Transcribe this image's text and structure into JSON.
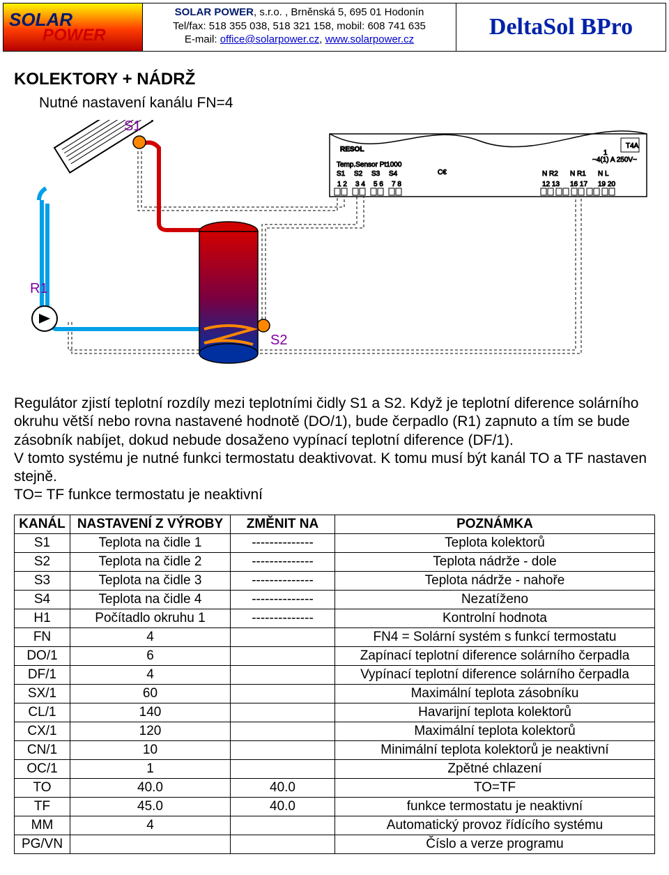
{
  "header": {
    "logo": {
      "line1": "SOLAR",
      "line2": "POWER"
    },
    "company": {
      "name_prefix": "SOLAR ",
      "name_red": "POWER",
      "name_suffix": ", s.r.o. , Brněnská 5, 695 01 Hodonín",
      "telfax": "Tel/fax: 518 355 038, 518 321 158, mobil: 608 741 635",
      "email_prefix": "E-mail: ",
      "email_link": "office@solarpower.cz",
      "email_mid": ", ",
      "website": "www.solarpower.cz"
    },
    "product": "DeltaSol BPro"
  },
  "section_title": "KOLEKTORY + NÁDRŽ",
  "subtitle": "Nutné nastavení kanálu FN=4",
  "diagram_labels": {
    "S1": "S1",
    "R1": "R1",
    "S2": "S2"
  },
  "body_text": "Regulátor zjistí teplotní rozdíly mezi teplotními čidly S1 a S2. Když je teplotní diference solárního okruhu větší nebo rovna nastavené hodnotě (DO/1), bude čerpadlo (R1) zapnuto a tím se bude zásobník nabíjet, dokud nebude dosaženo vypínací teplotní diference (DF/1).\nV tomto systému je nutné funkci termostatu deaktivovat. K tomu musí být kanál TO a TF nastaven stejně.\nTO= TF funkce termostatu je neaktivní",
  "table": {
    "columns": [
      "KANÁL",
      "NASTAVENÍ Z VÝROBY",
      "ZMĚNIT NA",
      "POZNÁMKA"
    ],
    "rows": [
      [
        "S1",
        "Teplota na čidle 1",
        "--------------",
        "Teplota kolektorů"
      ],
      [
        "S2",
        "Teplota na čidle 2",
        "--------------",
        "Teplota nádrže - dole"
      ],
      [
        "S3",
        "Teplota na čidle 3",
        "--------------",
        "Teplota nádrže - nahoře"
      ],
      [
        "S4",
        "Teplota na čidle 4",
        "--------------",
        "Nezatíženo"
      ],
      [
        "H1",
        "Počítadlo okruhu 1",
        "--------------",
        "Kontrolní hodnota"
      ],
      [
        "FN",
        "4",
        "",
        "FN4 = Solární systém s funkcí termostatu"
      ],
      [
        "DO/1",
        "6",
        "",
        "Zapínací teplotní diference solárního čerpadla"
      ],
      [
        "DF/1",
        "4",
        "",
        "Vypínací teplotní diference solárního čerpadla"
      ],
      [
        "SX/1",
        "60",
        "",
        "Maximální teplota zásobníku"
      ],
      [
        "CL/1",
        "140",
        "",
        "Havarijní teplota kolektorů"
      ],
      [
        "CX/1",
        "120",
        "",
        "Maximální teplota kolektorů"
      ],
      [
        "CN/1",
        "10",
        "",
        "Minimální teplota kolektorů je neaktivní"
      ],
      [
        "OC/1",
        "1",
        "",
        "Zpětné chlazení"
      ],
      [
        "TO",
        "40.0",
        "40.0",
        "TO=TF"
      ],
      [
        "TF",
        "45.0",
        "40.0",
        "funkce termostatu je neaktivní"
      ],
      [
        "MM",
        "4",
        "",
        "Automatický provoz řídícího systému"
      ],
      [
        "PG/VN",
        "",
        "",
        "Číslo a verze programu"
      ]
    ]
  },
  "colors": {
    "blue_brand": "#001a6b",
    "red_brand": "#cc0000",
    "link": "#0000cc",
    "product_blue": "#0022aa",
    "pipe_cold": "#00a0e9",
    "pipe_hot": "#d00000",
    "sensor_orange": "#ff8800"
  }
}
